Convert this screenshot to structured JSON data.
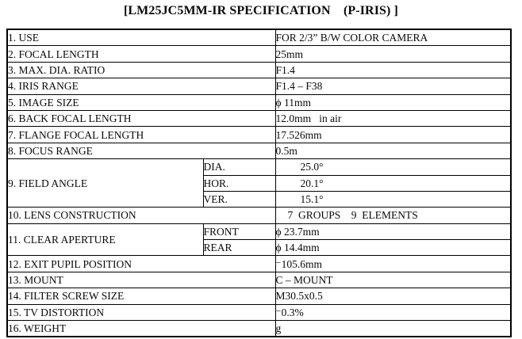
{
  "page": {
    "title": "[LM25JC5MM-IR SPECIFICATION    (P-IRIS) ]"
  },
  "table": {
    "rows": [
      {
        "label": "1. USE",
        "value": "FOR 2/3” B/W COLOR CAMERA"
      },
      {
        "label": "2. FOCAL LENGTH",
        "value": "25mm"
      },
      {
        "label": "3. MAX. DIA. RATIO",
        "value": "F1.4"
      },
      {
        "label": "4. IRIS RANGE",
        "value": "F1.4 – F38"
      },
      {
        "label": "5. IMAGE SIZE",
        "value": "ϕ 11mm"
      },
      {
        "label": "6. BACK FOCAL LENGTH",
        "value": "12.0mm   in air"
      },
      {
        "label": "7. FLANGE FOCAL LENGTH",
        "value": "17.526mm"
      },
      {
        "label": "8. FOCUS RANGE",
        "value": "0.5m"
      },
      {
        "label": "9. FIELD ANGLE",
        "subrows": [
          {
            "sub": "DIA.",
            "value": "25.0°",
            "indent": "ind"
          },
          {
            "sub": "HOR.",
            "value": "20.1°",
            "indent": "ind"
          },
          {
            "sub": "VER.",
            "value": "15.1°",
            "indent": "ind"
          }
        ]
      },
      {
        "label": "10. LENS CONSTRUCTION",
        "value": "7  GROUPS    9  ELEMENTS",
        "indent": "ind-sm"
      },
      {
        "label": "11. CLEAR APERTURE",
        "subrows": [
          {
            "sub": "FRONT",
            "value": "ϕ 23.7mm"
          },
          {
            "sub": "REAR",
            "value": "ϕ 14.4mm"
          }
        ]
      },
      {
        "label": "12. EXIT PUPIL POSITION",
        "value": "⁻105.6mm"
      },
      {
        "label": "13. MOUNT",
        "value": "C – MOUNT"
      },
      {
        "label": "14. FILTER SCREW SIZE",
        "value": "M30.5x0.5"
      },
      {
        "label": "15. TV DISTORTION",
        "value": "⁻0.3%"
      },
      {
        "label": "16. WEIGHT",
        "value": "g"
      }
    ]
  }
}
